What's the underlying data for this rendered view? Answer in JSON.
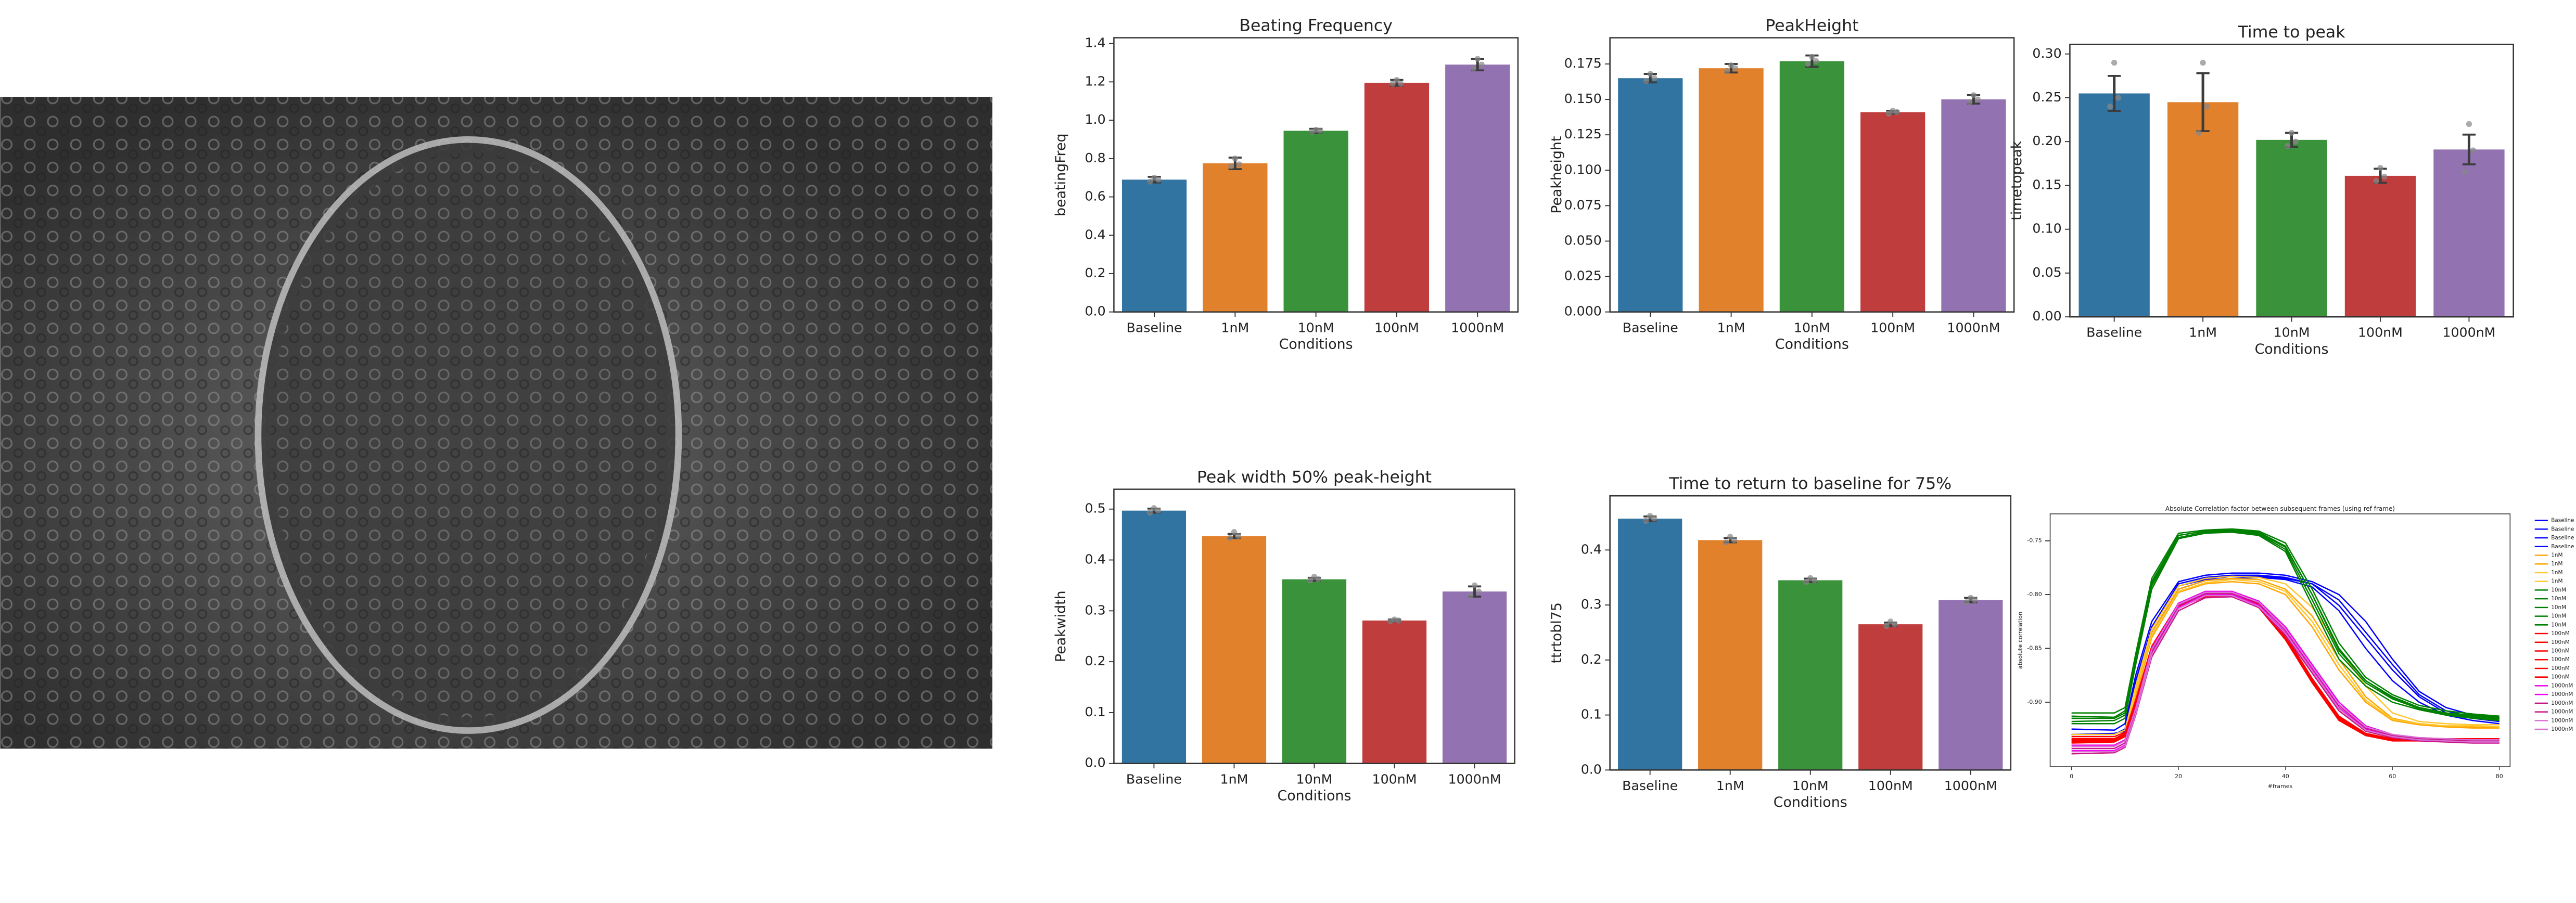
{
  "chart_data": [
    {
      "type": "bar",
      "title": "Beating Frequency",
      "xlabel": "Conditions",
      "ylabel": "beatingFreq",
      "categories": [
        "Baseline",
        "1nM",
        "10nM",
        "100nM",
        "1000nM"
      ],
      "values": [
        0.69,
        0.775,
        0.945,
        1.195,
        1.29
      ],
      "errors": [
        0.015,
        0.03,
        0.01,
        0.015,
        0.03
      ],
      "points": [
        [
          0.68,
          0.7,
          0.69
        ],
        [
          0.76,
          0.8,
          0.77
        ],
        [
          0.94,
          0.95,
          0.945
        ],
        [
          1.19,
          1.21,
          1.19
        ],
        [
          1.27,
          1.32,
          1.29
        ]
      ],
      "colors": [
        "#3274a1",
        "#e1812c",
        "#3a923a",
        "#c03d3e",
        "#9372b2"
      ],
      "ylim": [
        0,
        1.43
      ],
      "yticks": [
        {
          "value": 0,
          "label": "0.0"
        },
        0.2,
        0.4,
        0.6,
        0.8,
        {
          "value": 1,
          "label": "1.0"
        },
        1.2,
        1.4
      ]
    },
    {
      "type": "bar",
      "title": "PeakHeight",
      "xlabel": "Conditions",
      "ylabel": "Peakheight",
      "categories": [
        "Baseline",
        "1nM",
        "10nM",
        "100nM",
        "1000nM"
      ],
      "values": [
        0.165,
        0.172,
        0.177,
        0.141,
        0.15
      ],
      "errors": [
        0.003,
        0.003,
        0.004,
        0.001,
        0.003
      ],
      "points": [
        [
          0.163,
          0.168,
          0.165
        ],
        [
          0.17,
          0.174,
          0.172
        ],
        [
          0.175,
          0.18,
          0.177
        ],
        [
          0.14,
          0.142,
          0.141
        ],
        [
          0.148,
          0.153,
          0.15
        ]
      ],
      "colors": [
        "#3274a1",
        "#e1812c",
        "#3a923a",
        "#c03d3e",
        "#9372b2"
      ],
      "ylim": [
        0,
        0.1935
      ],
      "yticks": [
        {
          "value": 0,
          "label": "0.000"
        },
        0.025,
        {
          "value": 0.05,
          "label": "0.050"
        },
        0.075,
        {
          "value": 0.1,
          "label": "0.100"
        },
        0.125,
        {
          "value": 0.15,
          "label": "0.150"
        },
        0.175
      ]
    },
    {
      "type": "bar",
      "title": "Time to peak",
      "xlabel": "Conditions",
      "ylabel": "timetopeak",
      "categories": [
        "Baseline",
        "1nM",
        "10nM",
        "100nM",
        "1000nM"
      ],
      "values": [
        0.255,
        0.245,
        0.202,
        0.161,
        0.191
      ],
      "errors": [
        0.02,
        0.033,
        0.008,
        0.008,
        0.017
      ],
      "points": [
        [
          0.24,
          0.29,
          0.25
        ],
        [
          0.21,
          0.29,
          0.24
        ],
        [
          0.195,
          0.21,
          0.2
        ],
        [
          0.155,
          0.17,
          0.16
        ],
        [
          0.165,
          0.22,
          0.19
        ]
      ],
      "colors": [
        "#3274a1",
        "#e1812c",
        "#3a923a",
        "#c03d3e",
        "#9372b2"
      ],
      "ylim": [
        0,
        0.311
      ],
      "yticks": [
        {
          "value": 0,
          "label": "0.00"
        },
        0.05,
        {
          "value": 0.1,
          "label": "0.10"
        },
        0.15,
        {
          "value": 0.2,
          "label": "0.20"
        },
        0.25,
        {
          "value": 0.3,
          "label": "0.30"
        }
      ]
    },
    {
      "type": "bar",
      "title": "Peak width 50% peak-height",
      "xlabel": "Conditions",
      "ylabel": "Peakwidth",
      "categories": [
        "Baseline",
        "1nM",
        "10nM",
        "100nM",
        "1000nM"
      ],
      "values": [
        0.497,
        0.447,
        0.362,
        0.281,
        0.338
      ],
      "errors": [
        0.004,
        0.004,
        0.003,
        0.002,
        0.01
      ],
      "points": [
        [
          0.493,
          0.502,
          0.497
        ],
        [
          0.443,
          0.455,
          0.447
        ],
        [
          0.36,
          0.367,
          0.362
        ],
        [
          0.28,
          0.283,
          0.281
        ],
        [
          0.33,
          0.35,
          0.338
        ]
      ],
      "colors": [
        "#3274a1",
        "#e1812c",
        "#3a923a",
        "#c03d3e",
        "#9372b2"
      ],
      "ylim": [
        0,
        0.539
      ],
      "yticks": [
        {
          "value": 0,
          "label": "0.0"
        },
        0.1,
        0.2,
        0.3,
        0.4,
        0.5
      ]
    },
    {
      "type": "bar",
      "title": "Time to return to baseline for 75%",
      "xlabel": "Conditions",
      "ylabel": "ttrtobl75",
      "categories": [
        "Baseline",
        "1nM",
        "10nM",
        "100nM",
        "1000nM"
      ],
      "values": [
        0.457,
        0.418,
        0.345,
        0.265,
        0.309
      ],
      "errors": [
        0.004,
        0.004,
        0.003,
        0.003,
        0.004
      ],
      "points": [
        [
          0.453,
          0.462,
          0.457
        ],
        [
          0.414,
          0.424,
          0.418
        ],
        [
          0.342,
          0.349,
          0.345
        ],
        [
          0.262,
          0.27,
          0.265
        ],
        [
          0.305,
          0.313,
          0.309
        ]
      ],
      "colors": [
        "#3274a1",
        "#e1812c",
        "#3a923a",
        "#c03d3e",
        "#9372b2"
      ],
      "ylim": [
        0,
        0.4985
      ],
      "yticks": [
        {
          "value": 0,
          "label": "0.0"
        },
        0.1,
        0.2,
        0.3,
        0.4
      ]
    },
    {
      "type": "line",
      "title": "Absolute Correlation factor between subsequent frames (using ref frame)",
      "xlabel": "#frames",
      "ylabel": "absolute correlation",
      "x": [
        0,
        8,
        10,
        12,
        15,
        20,
        25,
        30,
        35,
        40,
        45,
        50,
        55,
        60,
        65,
        70,
        75,
        80
      ],
      "xlim": [
        -4,
        82
      ],
      "xticks": [
        0,
        20,
        40,
        60,
        80
      ],
      "ylim": [
        -0.96,
        -0.725
      ],
      "yticks": [
        -0.75,
        {
          "value": -0.8,
          "label": "-0.80"
        },
        -0.85,
        {
          "value": -0.9,
          "label": "-0.90"
        }
      ],
      "series": [
        {
          "name": "Baseline",
          "color": "#0000ff",
          "values": [
            -0.93,
            -0.93,
            -0.925,
            -0.88,
            -0.83,
            -0.79,
            -0.784,
            -0.782,
            -0.782,
            -0.784,
            -0.79,
            -0.81,
            -0.84,
            -0.87,
            -0.895,
            -0.91,
            -0.915,
            -0.918
          ]
        },
        {
          "name": "Baseline",
          "color": "#0000ff",
          "values": [
            -0.935,
            -0.934,
            -0.93,
            -0.89,
            -0.835,
            -0.795,
            -0.787,
            -0.785,
            -0.784,
            -0.786,
            -0.793,
            -0.815,
            -0.85,
            -0.88,
            -0.9,
            -0.912,
            -0.917,
            -0.92
          ]
        },
        {
          "name": "Baseline",
          "color": "#0000ff",
          "values": [
            -0.925,
            -0.926,
            -0.92,
            -0.875,
            -0.825,
            -0.788,
            -0.782,
            -0.78,
            -0.78,
            -0.782,
            -0.788,
            -0.8,
            -0.825,
            -0.86,
            -0.89,
            -0.905,
            -0.912,
            -0.915
          ]
        },
        {
          "name": "Baseline",
          "color": "#0000ff",
          "values": [
            -0.93,
            -0.929,
            -0.927,
            -0.885,
            -0.83,
            -0.792,
            -0.786,
            -0.783,
            -0.783,
            -0.785,
            -0.79,
            -0.805,
            -0.835,
            -0.865,
            -0.893,
            -0.908,
            -0.914,
            -0.917
          ]
        },
        {
          "name": "1nM",
          "color": "#ffa500",
          "values": [
            -0.935,
            -0.935,
            -0.93,
            -0.89,
            -0.835,
            -0.795,
            -0.787,
            -0.785,
            -0.786,
            -0.795,
            -0.82,
            -0.86,
            -0.895,
            -0.915,
            -0.92,
            -0.922,
            -0.923,
            -0.923
          ]
        },
        {
          "name": "1nM",
          "color": "#ffa500",
          "values": [
            -0.94,
            -0.94,
            -0.935,
            -0.895,
            -0.84,
            -0.798,
            -0.79,
            -0.788,
            -0.79,
            -0.8,
            -0.83,
            -0.87,
            -0.9,
            -0.917,
            -0.921,
            -0.923,
            -0.924,
            -0.924
          ]
        },
        {
          "name": "1nM",
          "color": "#ffc830",
          "values": [
            -0.93,
            -0.93,
            -0.926,
            -0.885,
            -0.832,
            -0.792,
            -0.785,
            -0.783,
            -0.784,
            -0.79,
            -0.812,
            -0.85,
            -0.885,
            -0.91,
            -0.918,
            -0.92,
            -0.921,
            -0.921
          ]
        },
        {
          "name": "1nM",
          "color": "#ffc830",
          "values": [
            -0.935,
            -0.934,
            -0.93,
            -0.89,
            -0.838,
            -0.797,
            -0.789,
            -0.786,
            -0.788,
            -0.797,
            -0.825,
            -0.865,
            -0.898,
            -0.916,
            -0.92,
            -0.922,
            -0.922,
            -0.923
          ]
        },
        {
          "name": "10nM",
          "color": "#008000",
          "values": [
            -0.915,
            -0.915,
            -0.91,
            -0.86,
            -0.79,
            -0.745,
            -0.741,
            -0.74,
            -0.742,
            -0.755,
            -0.8,
            -0.85,
            -0.88,
            -0.895,
            -0.905,
            -0.91,
            -0.913,
            -0.915
          ]
        },
        {
          "name": "10nM",
          "color": "#008000",
          "values": [
            -0.92,
            -0.92,
            -0.915,
            -0.865,
            -0.795,
            -0.748,
            -0.743,
            -0.742,
            -0.745,
            -0.76,
            -0.81,
            -0.86,
            -0.885,
            -0.9,
            -0.907,
            -0.912,
            -0.915,
            -0.917
          ]
        },
        {
          "name": "10nM",
          "color": "#008000",
          "values": [
            -0.91,
            -0.91,
            -0.905,
            -0.855,
            -0.785,
            -0.743,
            -0.74,
            -0.739,
            -0.741,
            -0.752,
            -0.795,
            -0.845,
            -0.877,
            -0.893,
            -0.903,
            -0.908,
            -0.911,
            -0.913
          ]
        },
        {
          "name": "10nM",
          "color": "#008000",
          "values": [
            -0.918,
            -0.917,
            -0.912,
            -0.86,
            -0.792,
            -0.747,
            -0.742,
            -0.741,
            -0.744,
            -0.758,
            -0.805,
            -0.855,
            -0.882,
            -0.897,
            -0.906,
            -0.911,
            -0.914,
            -0.916
          ]
        },
        {
          "name": "10nM",
          "color": "#008000",
          "values": [
            -0.913,
            -0.914,
            -0.908,
            -0.858,
            -0.788,
            -0.745,
            -0.741,
            -0.74,
            -0.743,
            -0.756,
            -0.8,
            -0.852,
            -0.88,
            -0.896,
            -0.905,
            -0.91,
            -0.912,
            -0.914
          ]
        },
        {
          "name": "100nM",
          "color": "#ff0000",
          "values": [
            -0.935,
            -0.935,
            -0.93,
            -0.9,
            -0.85,
            -0.81,
            -0.8,
            -0.8,
            -0.81,
            -0.84,
            -0.88,
            -0.915,
            -0.93,
            -0.935,
            -0.935,
            -0.935,
            -0.935,
            -0.935
          ]
        },
        {
          "name": "100nM",
          "color": "#ff0000",
          "values": [
            -0.938,
            -0.937,
            -0.932,
            -0.902,
            -0.852,
            -0.812,
            -0.802,
            -0.801,
            -0.812,
            -0.842,
            -0.882,
            -0.917,
            -0.931,
            -0.936,
            -0.936,
            -0.936,
            -0.936,
            -0.936
          ]
        },
        {
          "name": "100nM",
          "color": "#ff0000",
          "values": [
            -0.932,
            -0.932,
            -0.928,
            -0.898,
            -0.848,
            -0.808,
            -0.799,
            -0.799,
            -0.808,
            -0.838,
            -0.878,
            -0.913,
            -0.929,
            -0.934,
            -0.934,
            -0.934,
            -0.934,
            -0.934
          ]
        },
        {
          "name": "100nM",
          "color": "#ff0000",
          "values": [
            -0.936,
            -0.936,
            -0.931,
            -0.901,
            -0.851,
            -0.811,
            -0.801,
            -0.8,
            -0.811,
            -0.841,
            -0.881,
            -0.916,
            -0.93,
            -0.935,
            -0.936,
            -0.935,
            -0.936,
            -0.935
          ]
        },
        {
          "name": "100nM",
          "color": "#ff0000",
          "values": [
            -0.934,
            -0.934,
            -0.929,
            -0.899,
            -0.849,
            -0.809,
            -0.8,
            -0.799,
            -0.809,
            -0.839,
            -0.879,
            -0.914,
            -0.93,
            -0.934,
            -0.935,
            -0.934,
            -0.935,
            -0.934
          ]
        },
        {
          "name": "100nM",
          "color": "#ff0000",
          "values": [
            -0.937,
            -0.936,
            -0.931,
            -0.9,
            -0.85,
            -0.81,
            -0.801,
            -0.8,
            -0.81,
            -0.84,
            -0.88,
            -0.916,
            -0.931,
            -0.935,
            -0.935,
            -0.936,
            -0.935,
            -0.936
          ]
        },
        {
          "name": "1000nM",
          "color": "#ee00ee",
          "values": [
            -0.945,
            -0.945,
            -0.94,
            -0.91,
            -0.855,
            -0.812,
            -0.8,
            -0.8,
            -0.81,
            -0.835,
            -0.87,
            -0.905,
            -0.925,
            -0.932,
            -0.935,
            -0.936,
            -0.937,
            -0.937
          ]
        },
        {
          "name": "1000nM",
          "color": "#ee00ee",
          "values": [
            -0.94,
            -0.94,
            -0.935,
            -0.905,
            -0.85,
            -0.808,
            -0.797,
            -0.797,
            -0.806,
            -0.83,
            -0.865,
            -0.9,
            -0.922,
            -0.93,
            -0.933,
            -0.934,
            -0.935,
            -0.935
          ]
        },
        {
          "name": "1000nM",
          "color": "#c71585",
          "values": [
            -0.948,
            -0.947,
            -0.942,
            -0.912,
            -0.858,
            -0.815,
            -0.803,
            -0.802,
            -0.812,
            -0.838,
            -0.873,
            -0.908,
            -0.927,
            -0.933,
            -0.936,
            -0.937,
            -0.938,
            -0.938
          ]
        },
        {
          "name": "1000nM",
          "color": "#c71585",
          "values": [
            -0.943,
            -0.943,
            -0.938,
            -0.908,
            -0.853,
            -0.81,
            -0.799,
            -0.799,
            -0.808,
            -0.833,
            -0.868,
            -0.903,
            -0.924,
            -0.931,
            -0.934,
            -0.935,
            -0.936,
            -0.936
          ]
        },
        {
          "name": "1000nM",
          "color": "#da70d6",
          "values": [
            -0.946,
            -0.946,
            -0.941,
            -0.911,
            -0.856,
            -0.813,
            -0.801,
            -0.801,
            -0.811,
            -0.836,
            -0.871,
            -0.906,
            -0.926,
            -0.932,
            -0.935,
            -0.936,
            -0.937,
            -0.937
          ]
        },
        {
          "name": "1000nM",
          "color": "#da70d6",
          "values": [
            -0.941,
            -0.941,
            -0.936,
            -0.906,
            -0.851,
            -0.809,
            -0.798,
            -0.798,
            -0.807,
            -0.832,
            -0.867,
            -0.902,
            -0.923,
            -0.93,
            -0.933,
            -0.934,
            -0.935,
            -0.935
          ]
        }
      ]
    }
  ]
}
